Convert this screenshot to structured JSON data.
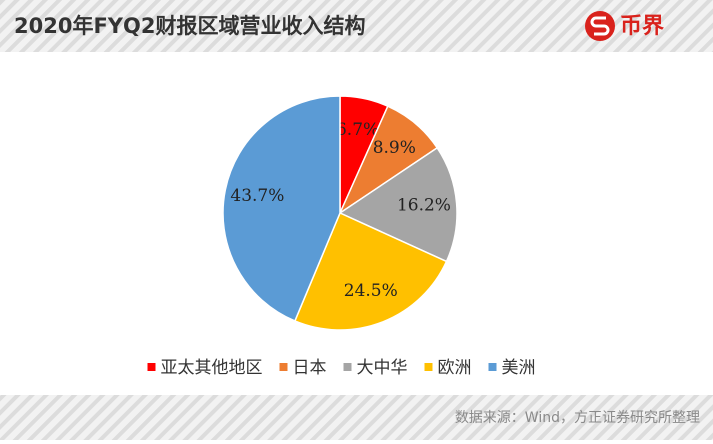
{
  "chart_data": {
    "type": "pie",
    "title": "2020年FYQ2财报区域营业收入结构",
    "categories": [
      "亚太其他地区",
      "日本",
      "大中华",
      "欧洲",
      "美洲"
    ],
    "values": [
      6.7,
      8.9,
      16.2,
      24.5,
      43.7
    ],
    "value_labels": [
      "6.7%",
      "8.9%",
      "16.2%",
      "24.5%",
      "43.7%"
    ],
    "colors": [
      "#ff0000",
      "#ed7d31",
      "#a5a5a5",
      "#ffc000",
      "#5b9bd5"
    ],
    "legend": "bottom"
  },
  "brand": "币界",
  "source": "数据来源：Wind，方正证券研究所整理"
}
